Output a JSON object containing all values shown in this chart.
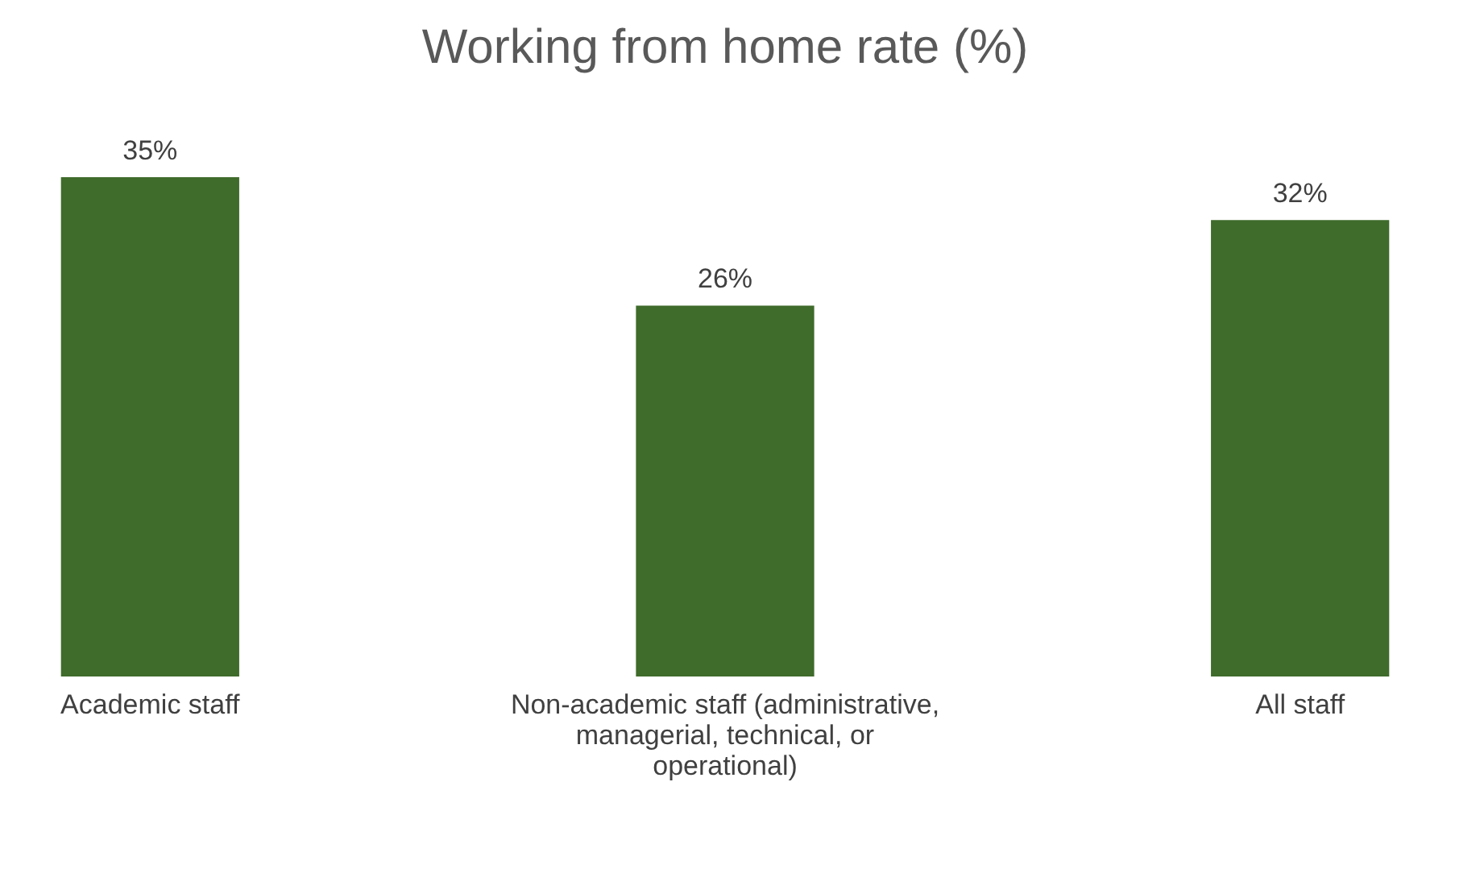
{
  "chart_data": {
    "type": "bar",
    "title": "Working from home rate (%)",
    "categories": [
      "Academic staff",
      "Non-academic staff (administrative, managerial, technical, or operational)",
      "All staff"
    ],
    "values": [
      35,
      26,
      32
    ],
    "value_labels": [
      "35%",
      "26%",
      "32%"
    ],
    "color": "#3f6b2b"
  }
}
